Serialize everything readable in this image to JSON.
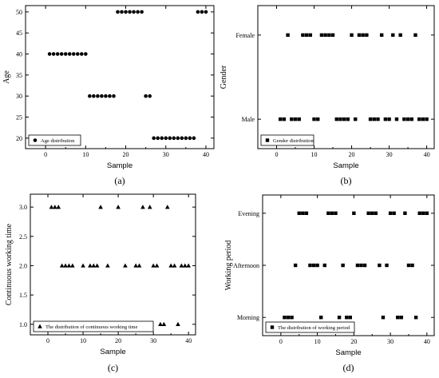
{
  "chart_data": [
    {
      "type": "scatter",
      "panel_label": "(a)",
      "xlabel": "Sample",
      "ylabel": "Age",
      "xlim": [
        -5,
        42
      ],
      "ylim": [
        17.5,
        51.5
      ],
      "xticks": [
        0,
        10,
        20,
        30,
        40
      ],
      "yticks": [
        20,
        25,
        30,
        35,
        40,
        45,
        50
      ],
      "marker": "circle",
      "legend_position": "bottom-left",
      "series": [
        {
          "name": "Age distribution",
          "x": [
            1,
            2,
            3,
            4,
            5,
            6,
            7,
            8,
            9,
            10,
            11,
            12,
            13,
            14,
            15,
            16,
            17,
            18,
            19,
            20,
            21,
            22,
            23,
            24,
            25,
            26,
            27,
            28,
            29,
            30,
            31,
            32,
            33,
            34,
            35,
            36,
            37,
            38,
            39,
            40
          ],
          "y": [
            40,
            40,
            40,
            40,
            40,
            40,
            40,
            40,
            40,
            40,
            30,
            30,
            30,
            30,
            30,
            30,
            30,
            50,
            50,
            50,
            50,
            50,
            50,
            50,
            30,
            30,
            20,
            20,
            20,
            20,
            20,
            20,
            20,
            20,
            20,
            20,
            20,
            50,
            50,
            50
          ]
        }
      ]
    },
    {
      "type": "scatter",
      "panel_label": "(b)",
      "xlabel": "Sample",
      "ylabel": "Gender",
      "xlim": [
        -5,
        42
      ],
      "ylim": [
        -0.35,
        1.35
      ],
      "xticks": [
        0,
        10,
        20,
        30,
        40
      ],
      "yticks": [
        0,
        1
      ],
      "ytick_labels": [
        "Male",
        "Female"
      ],
      "marker": "square",
      "legend_position": "bottom-left",
      "series": [
        {
          "name": "Gender distribution",
          "x": [
            1,
            2,
            3,
            4,
            5,
            6,
            7,
            8,
            9,
            10,
            11,
            12,
            13,
            14,
            15,
            16,
            17,
            18,
            19,
            20,
            21,
            22,
            23,
            24,
            25,
            26,
            27,
            28,
            29,
            30,
            31,
            32,
            33,
            34,
            35,
            36,
            37,
            38,
            39,
            40
          ],
          "y": [
            0,
            0,
            1,
            0,
            0,
            0,
            1,
            1,
            1,
            0,
            0,
            1,
            1,
            1,
            1,
            0,
            0,
            0,
            0,
            1,
            0,
            1,
            1,
            1,
            0,
            0,
            0,
            1,
            0,
            0,
            1,
            0,
            1,
            0,
            0,
            0,
            1,
            0,
            0,
            0
          ]
        }
      ]
    },
    {
      "type": "scatter",
      "panel_label": "(c)",
      "xlabel": "Sample",
      "ylabel": "Continuous working time",
      "xlim": [
        -5,
        42
      ],
      "ylim": [
        0.82,
        3.22
      ],
      "xticks": [
        0,
        10,
        20,
        30,
        40
      ],
      "yticks": [
        1.0,
        1.5,
        2.0,
        2.5,
        3.0
      ],
      "ytick_labels": [
        "1.0",
        "1.5",
        "2.0",
        "2.5",
        "3.0"
      ],
      "marker": "triangle",
      "legend_position": "bottom-left",
      "series": [
        {
          "name": "The distribution of continuous working time",
          "x": [
            1,
            2,
            3,
            4,
            5,
            6,
            7,
            8,
            9,
            10,
            11,
            12,
            13,
            14,
            15,
            16,
            17,
            18,
            19,
            20,
            21,
            22,
            23,
            24,
            25,
            26,
            27,
            28,
            29,
            30,
            31,
            32,
            33,
            34,
            35,
            36,
            37,
            38,
            39,
            40
          ],
          "y": [
            3,
            3,
            3,
            2,
            2,
            2,
            2,
            1,
            1,
            2,
            1,
            2,
            2,
            2,
            3,
            1,
            2,
            1,
            1,
            3,
            1,
            2,
            1,
            1,
            2,
            2,
            3,
            1,
            3,
            2,
            2,
            1,
            1,
            3,
            2,
            2,
            1,
            2,
            2,
            2
          ]
        }
      ]
    },
    {
      "type": "scatter",
      "panel_label": "(d)",
      "xlabel": "Sample",
      "ylabel": "Working period",
      "xlim": [
        -5,
        42
      ],
      "ylim": [
        -0.35,
        2.35
      ],
      "xticks": [
        0,
        10,
        20,
        30,
        40
      ],
      "yticks": [
        0,
        1,
        2
      ],
      "ytick_labels": [
        "Morning",
        "Afternoon",
        "Evening"
      ],
      "marker": "square",
      "legend_position": "bottom-left",
      "series": [
        {
          "name": "The distribution of working period",
          "x": [
            1,
            2,
            3,
            4,
            5,
            6,
            7,
            8,
            9,
            10,
            11,
            12,
            13,
            14,
            15,
            16,
            17,
            18,
            19,
            20,
            21,
            22,
            23,
            24,
            25,
            26,
            27,
            28,
            29,
            30,
            31,
            32,
            33,
            34,
            35,
            36,
            37,
            38,
            39,
            40
          ],
          "y": [
            0,
            0,
            0,
            1,
            2,
            2,
            2,
            1,
            1,
            1,
            0,
            1,
            2,
            2,
            2,
            0,
            1,
            0,
            0,
            2,
            1,
            1,
            1,
            2,
            2,
            2,
            1,
            0,
            1,
            2,
            2,
            0,
            0,
            2,
            1,
            1,
            0,
            2,
            2,
            2
          ]
        }
      ]
    }
  ]
}
